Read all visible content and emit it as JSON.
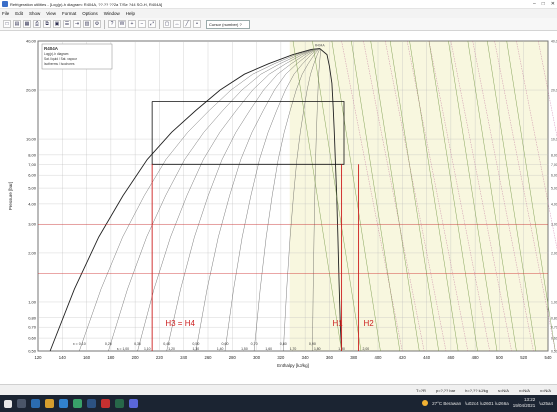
{
  "window": {
    "title": "Refrigeration utilities - [Log(p)-h diagram: R404A, ??.?? ??2a T/Se ?44 SO-H, R404A]",
    "min_label": "–",
    "max_label": "□",
    "close_label": "✕"
  },
  "menu": {
    "items": [
      "File",
      "Edit",
      "Show",
      "View",
      "Format",
      "Options",
      "Window",
      "Help"
    ]
  },
  "toolbar": {
    "buttons": [
      {
        "name": "new-button",
        "glyph": "□"
      },
      {
        "name": "open-button",
        "glyph": "▤"
      },
      {
        "name": "save-button",
        "glyph": "▦"
      },
      {
        "name": "print-button",
        "glyph": "⎙"
      },
      {
        "name": "copy-button",
        "glyph": "⧉"
      },
      {
        "name": "paste-button",
        "glyph": "▣"
      },
      {
        "name": "properties-button",
        "glyph": "☰"
      },
      {
        "name": "export-button",
        "glyph": "⇥"
      },
      {
        "name": "chart-button",
        "glyph": "▥"
      },
      {
        "name": "settings-button",
        "glyph": "⚙"
      },
      {
        "name": "help-button",
        "glyph": "?"
      },
      {
        "name": "cycle-button",
        "glyph": "W"
      },
      {
        "name": "zoom-in-button",
        "glyph": "+"
      },
      {
        "name": "zoom-out-button",
        "glyph": "−"
      },
      {
        "name": "zoom-fit-button",
        "glyph": "⤢"
      },
      {
        "name": "zoom-window-button",
        "glyph": "▢"
      },
      {
        "name": "pan-button",
        "glyph": "↔"
      },
      {
        "name": "line-button",
        "glyph": "╱"
      },
      {
        "name": "point-button",
        "glyph": "•"
      }
    ],
    "combo_value": "Cursor (number) ?"
  },
  "chart_data": {
    "type": "line",
    "title": "R404A",
    "subtitle": "Log(p)-h diagram",
    "xlabel": "Enthalpy [kJ/kg]",
    "ylabel": "Pressure [bar]",
    "x_ticks": [
      "120",
      "140",
      "160",
      "180",
      "200",
      "220",
      "240",
      "260",
      "280",
      "300",
      "320",
      "340",
      "360",
      "380",
      "400",
      "420",
      "440",
      "460",
      "480",
      "500",
      "520",
      "540"
    ],
    "y_ticks": [
      "40,00",
      "20,00",
      "10,00",
      "8,00",
      "7,00",
      "6,00",
      "5,00",
      "4,00",
      "3,00",
      "2,00",
      "1,00",
      "0,80",
      "0,70",
      "0,60",
      "0,50"
    ],
    "quality_labels": [
      "x = 0,10",
      "0,20",
      "0,30",
      "0,40",
      "0,50",
      "0,60",
      "0,70",
      "0,80",
      "0,90"
    ],
    "entropy_labels": [
      "s = 1,00",
      "1,10",
      "1,20",
      "1,30",
      "1,40",
      "1,50",
      "1,60",
      "1,70",
      "1,80",
      "1,90",
      "2,00"
    ],
    "cycle": {
      "label_left": "H3 = H4",
      "label_h1": "H1",
      "label_h2": "H2",
      "h3": 214,
      "h1": 370,
      "h2": 384,
      "p_high": 17.0,
      "p_low": 0.5,
      "p_mid": 7.0,
      "h_high_left": 214,
      "h_high_right": 372,
      "color": "#cc1f1f"
    },
    "dome": {
      "peak_h": 352,
      "peak_p": 36.0,
      "critical_label": "R404A",
      "colors": {
        "dome": "#222222",
        "shade": "#f2f1c4"
      }
    },
    "legend_box": [
      "R404A",
      "Log(p)-h diagram",
      "Sat. liquid / Sat. vapour",
      "Isotherms / Isochores"
    ],
    "ylim": [
      0.5,
      40
    ],
    "xlim": [
      120,
      540
    ]
  },
  "status": {
    "fields": [
      "T=?R",
      "p=?,?? bar",
      "h=?,?? kJ/kg",
      "s=N/A",
      "v=N/A",
      "x=N/A"
    ]
  },
  "taskbar": {
    "weather": "27°C Berawan",
    "time": "13:22",
    "date": "19/04/2021"
  }
}
